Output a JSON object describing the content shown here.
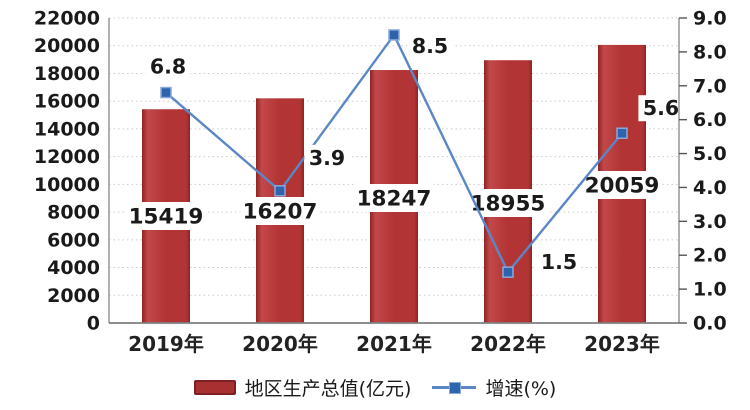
{
  "chart_data": {
    "type": "bar+line",
    "title": "",
    "categories": [
      "2019年",
      "2020年",
      "2021年",
      "2022年",
      "2023年"
    ],
    "series": [
      {
        "name": "地区生产总值(亿元)",
        "type": "bar",
        "axis": "left",
        "values": [
          15419,
          16207,
          18247,
          18955,
          20059
        ],
        "data_labels": [
          "15419",
          "16207",
          "18247",
          "18955",
          "20059"
        ]
      },
      {
        "name": "增速(%)",
        "type": "line",
        "axis": "right",
        "values": [
          6.8,
          3.9,
          8.5,
          1.5,
          5.6
        ],
        "data_labels": [
          "6.8",
          "3.9",
          "8.5",
          "1.5",
          "5.6"
        ]
      }
    ],
    "left_axis": {
      "min": 0,
      "max": 22000,
      "step": 2000,
      "tick_labels": [
        "0",
        "2000",
        "4000",
        "6000",
        "8000",
        "10000",
        "12000",
        "14000",
        "16000",
        "18000",
        "20000",
        "22000"
      ]
    },
    "right_axis": {
      "min": 0,
      "max": 9,
      "step": 1,
      "tick_labels": [
        "0.0",
        "1.0",
        "2.0",
        "3.0",
        "4.0",
        "5.0",
        "6.0",
        "7.0",
        "8.0",
        "9.0"
      ]
    },
    "grid": {
      "horizontal": true,
      "vertical": false,
      "style": "dotted"
    },
    "legend": {
      "position": "bottom"
    },
    "colors": {
      "bar": "#b23435",
      "bar_edge_dark": "#8f2425",
      "bar_highlight": "#c34849",
      "line": "#5b87c5",
      "marker": "#2e63ad",
      "marker_border": "#8aa9d9",
      "grid": "#cbcbcb",
      "axis": "#8e8e8e",
      "text": "#1a1a1a",
      "background": "#ffffff"
    }
  }
}
